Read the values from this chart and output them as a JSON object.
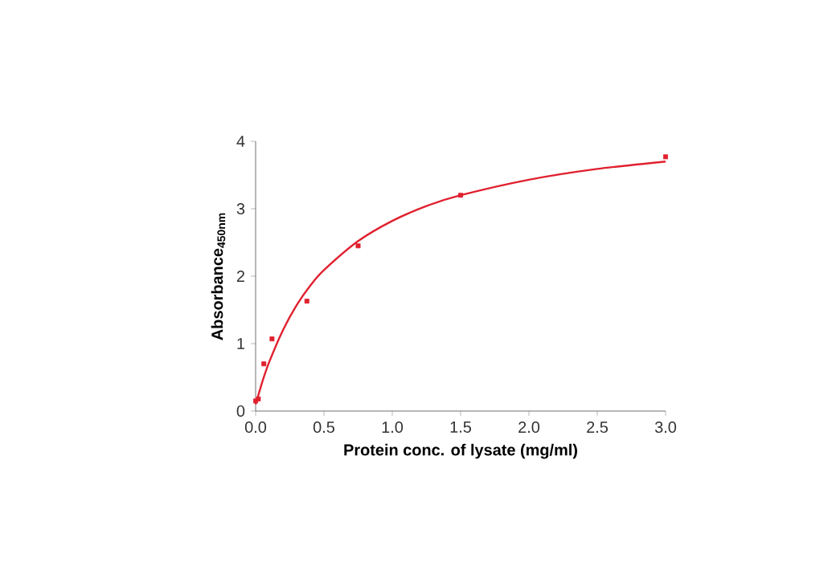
{
  "chart_data": {
    "type": "scatter",
    "xlabel": "Protein conc. of lysate (mg/ml)",
    "ylabel": "Absorbance$_{450nm}$",
    "xlim": [
      0,
      3
    ],
    "ylim": [
      0,
      4
    ],
    "xticks": [
      {
        "value": 0,
        "label": "0.0"
      },
      0.5,
      {
        "value": 1,
        "label": "1.0"
      },
      1.5,
      {
        "value": 2,
        "label": "2.0"
      },
      2.5,
      {
        "value": 3,
        "label": "3.0"
      }
    ],
    "yticks": [
      0,
      1,
      2,
      3,
      4
    ],
    "grid": false,
    "series": [
      {
        "marker": "square",
        "color": "#e0202e",
        "x": [
          0,
          0.02,
          0.06,
          0.12,
          0.375,
          0.75,
          1.5,
          3.0
        ],
        "values": [
          0.15,
          0.18,
          0.7,
          1.07,
          1.63,
          2.45,
          3.2,
          3.77
        ]
      },
      {
        "type": "line",
        "marker": "none",
        "color": "#e0202e",
        "line_style": "solid",
        "x": [
          0,
          0.05,
          0.1,
          0.2,
          0.3,
          0.4,
          0.5,
          0.75,
          1.0,
          1.25,
          1.5,
          2.0,
          2.5,
          3.0
        ],
        "values": [
          0.1,
          0.44,
          0.73,
          1.2,
          1.57,
          1.86,
          2.09,
          2.52,
          2.82,
          3.04,
          3.2,
          3.43,
          3.59,
          3.7
        ]
      }
    ]
  }
}
